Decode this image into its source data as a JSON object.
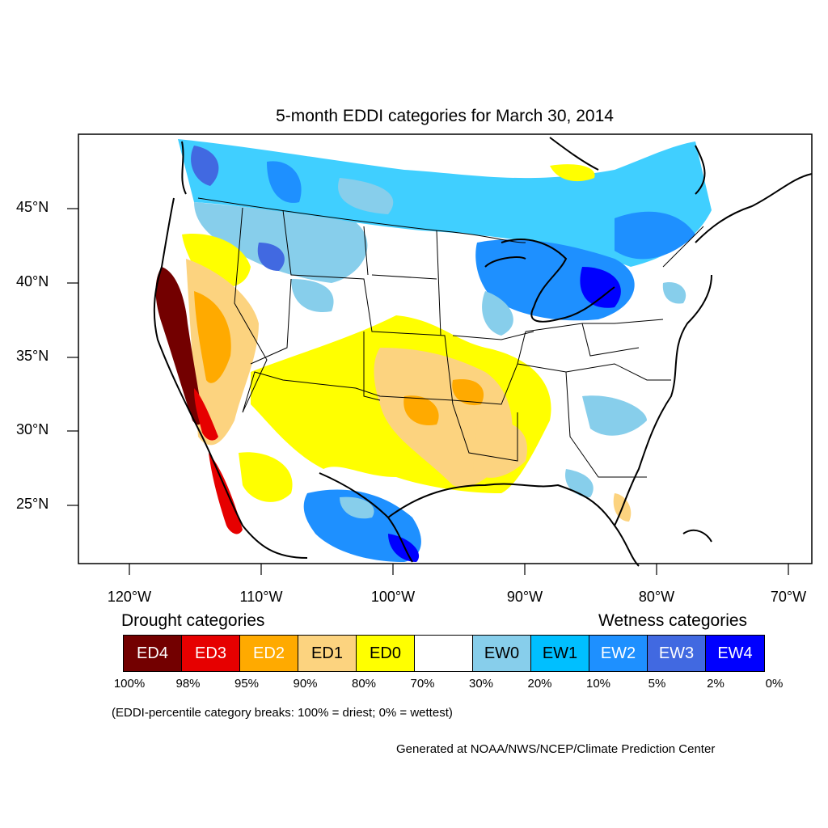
{
  "title": "5-month EDDI categories for March 30, 2014",
  "axes": {
    "lat_labels": [
      "45°N",
      "40°N",
      "35°N",
      "30°N",
      "25°N"
    ],
    "lon_labels": [
      "120°W",
      "110°W",
      "100°W",
      "90°W",
      "80°W",
      "70°W"
    ]
  },
  "legend": {
    "drought_heading": "Drought categories",
    "wetness_heading": "Wetness categories",
    "categories": [
      {
        "label": "ED4",
        "color": "#730000",
        "text_color": "#ffffff"
      },
      {
        "label": "ED3",
        "color": "#e60000",
        "text_color": "#ffffff"
      },
      {
        "label": "ED2",
        "color": "#ffaa00",
        "text_color": "#ffffff"
      },
      {
        "label": "ED1",
        "color": "#fcd37f",
        "text_color": "#000000"
      },
      {
        "label": "ED0",
        "color": "#ffff00",
        "text_color": "#000000"
      },
      {
        "label": "",
        "color": "#ffffff",
        "text_color": "#000000"
      },
      {
        "label": "EW0",
        "color": "#87ceeb",
        "text_color": "#000000"
      },
      {
        "label": "EW1",
        "color": "#00bfff",
        "text_color": "#000000"
      },
      {
        "label": "EW2",
        "color": "#1e90ff",
        "text_color": "#ffffff"
      },
      {
        "label": "EW3",
        "color": "#4169e1",
        "text_color": "#ffffff"
      },
      {
        "label": "EW4",
        "color": "#0000ff",
        "text_color": "#ffffff"
      }
    ],
    "percentiles": [
      "100%",
      "98%",
      "95%",
      "90%",
      "80%",
      "70%",
      "30%",
      "20%",
      "10%",
      "5%",
      "2%",
      "0%"
    ]
  },
  "note": "(EDDI-percentile category breaks: 100% = driest; 0% = wettest)",
  "credit": "Generated at NOAA/NWS/NCEP/Climate Prediction Center"
}
